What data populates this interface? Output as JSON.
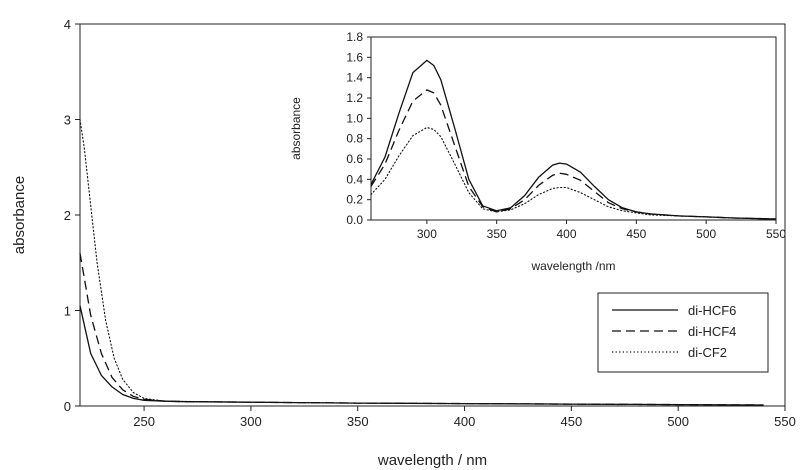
{
  "chart_data": [
    {
      "type": "line",
      "xlabel": "wavelength / nm",
      "ylabel": "absorbance",
      "xlim": [
        220,
        550
      ],
      "ylim": [
        0,
        4
      ],
      "xticks": [
        250,
        300,
        350,
        400,
        450,
        500,
        550
      ],
      "yticks": [
        0,
        1,
        2,
        3,
        4
      ],
      "grid": false,
      "legend": "right",
      "series": [
        {
          "name": "di-HCF6",
          "style": "solid",
          "x": [
            220,
            225,
            230,
            235,
            240,
            245,
            250,
            260,
            270,
            300,
            350,
            400,
            450,
            500,
            540
          ],
          "y": [
            1.05,
            0.55,
            0.32,
            0.2,
            0.12,
            0.08,
            0.06,
            0.05,
            0.045,
            0.04,
            0.03,
            0.025,
            0.02,
            0.015,
            0.01
          ]
        },
        {
          "name": "di-HCF4",
          "style": "dashed",
          "x": [
            220,
            225,
            230,
            235,
            240,
            245,
            250,
            260,
            270,
            300,
            350,
            400,
            450,
            500,
            540
          ],
          "y": [
            1.6,
            0.95,
            0.55,
            0.3,
            0.17,
            0.1,
            0.07,
            0.05,
            0.045,
            0.04,
            0.03,
            0.025,
            0.02,
            0.015,
            0.01
          ]
        },
        {
          "name": "di-CF2",
          "style": "dotted",
          "x": [
            220,
            222,
            225,
            228,
            232,
            236,
            240,
            245,
            250,
            260,
            300,
            350,
            400,
            450,
            475
          ],
          "y": [
            3.0,
            2.7,
            2.1,
            1.5,
            0.9,
            0.5,
            0.28,
            0.14,
            0.08,
            0.05,
            0.04,
            0.03,
            0.025,
            0.02,
            0.015
          ]
        }
      ]
    },
    {
      "type": "line",
      "inset": true,
      "xlabel": "wavelength /nm",
      "ylabel": "absorbance",
      "xlim": [
        260,
        550
      ],
      "ylim": [
        0,
        1.8
      ],
      "xticks": [
        300,
        350,
        400,
        450,
        500,
        550
      ],
      "yticks": [
        "0.0",
        "0.2",
        "0.4",
        "0.6",
        "0.8",
        "1.0",
        "1.2",
        "1.4",
        "1.6",
        "1.8"
      ],
      "grid": false,
      "series": [
        {
          "name": "di-HCF6",
          "style": "solid",
          "x": [
            260,
            270,
            280,
            290,
            300,
            305,
            310,
            320,
            330,
            340,
            350,
            360,
            370,
            380,
            390,
            395,
            400,
            410,
            420,
            430,
            440,
            450,
            460,
            480,
            500,
            520,
            550
          ],
          "y": [
            0.35,
            0.62,
            1.05,
            1.45,
            1.57,
            1.52,
            1.38,
            0.9,
            0.4,
            0.14,
            0.09,
            0.12,
            0.24,
            0.42,
            0.54,
            0.56,
            0.55,
            0.47,
            0.33,
            0.2,
            0.12,
            0.08,
            0.06,
            0.04,
            0.03,
            0.02,
            0.01
          ]
        },
        {
          "name": "di-HCF4",
          "style": "dashed",
          "x": [
            260,
            270,
            280,
            290,
            300,
            305,
            310,
            320,
            330,
            340,
            350,
            360,
            370,
            380,
            390,
            395,
            400,
            410,
            420,
            430,
            440,
            450,
            460,
            480,
            500,
            520,
            550
          ],
          "y": [
            0.33,
            0.55,
            0.88,
            1.17,
            1.28,
            1.25,
            1.13,
            0.73,
            0.33,
            0.13,
            0.08,
            0.11,
            0.2,
            0.34,
            0.44,
            0.46,
            0.45,
            0.39,
            0.28,
            0.17,
            0.11,
            0.08,
            0.06,
            0.04,
            0.03,
            0.02,
            0.01
          ]
        },
        {
          "name": "di-CF2",
          "style": "dotted",
          "x": [
            260,
            270,
            280,
            290,
            300,
            305,
            310,
            320,
            330,
            340,
            350,
            360,
            370,
            380,
            390,
            395,
            400,
            410,
            420,
            430,
            440,
            450,
            460,
            480,
            500,
            520,
            550
          ],
          "y": [
            0.25,
            0.4,
            0.63,
            0.83,
            0.91,
            0.89,
            0.82,
            0.55,
            0.27,
            0.11,
            0.08,
            0.1,
            0.16,
            0.25,
            0.31,
            0.32,
            0.32,
            0.27,
            0.2,
            0.13,
            0.09,
            0.07,
            0.05,
            0.04,
            0.03,
            0.02,
            0.01
          ]
        }
      ]
    }
  ]
}
